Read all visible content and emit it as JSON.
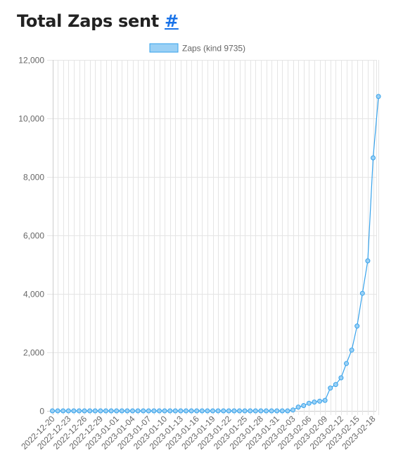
{
  "page": {
    "title": "Total Zaps sent",
    "anchor": "#"
  },
  "colors": {
    "line": "#36a2eb",
    "fill": "#9ad0f5",
    "grid": "#e5e5e5",
    "axis": "#cccccc",
    "text": "#666666"
  },
  "chart_data": {
    "type": "line",
    "ylim": [
      0,
      12000
    ],
    "y_ticks": [
      "0",
      "2,000",
      "4,000",
      "6,000",
      "8,000",
      "10,000",
      "12,000"
    ],
    "y_tick_values": [
      0,
      2000,
      4000,
      6000,
      8000,
      10000,
      12000
    ],
    "x_tick_labels": [
      "2022-12-20",
      "2022-12-23",
      "2022-12-26",
      "2022-12-29",
      "2023-01-01",
      "2023-01-04",
      "2023-01-07",
      "2023-01-10",
      "2023-01-13",
      "2023-01-16",
      "2023-01-19",
      "2023-01-22",
      "2023-01-25",
      "2023-01-28",
      "2023-01-31",
      "2023-02-03",
      "2023-02-06",
      "2023-02-09",
      "2023-02-12",
      "2023-02-15",
      "2023-02-18"
    ],
    "series": [
      {
        "name": "Zaps (kind 9735)",
        "start_date": "2022-12-20",
        "values": [
          0,
          0,
          0,
          0,
          0,
          0,
          0,
          0,
          0,
          0,
          0,
          0,
          0,
          0,
          0,
          0,
          0,
          0,
          0,
          0,
          0,
          0,
          0,
          0,
          0,
          0,
          0,
          0,
          0,
          0,
          0,
          0,
          0,
          0,
          0,
          0,
          0,
          0,
          0,
          0,
          0,
          0,
          0,
          0,
          0,
          30,
          130,
          180,
          260,
          300,
          330,
          360,
          780,
          900,
          1130,
          1620,
          2080,
          2900,
          4020,
          5130,
          8650,
          10750
        ]
      }
    ],
    "grid": true,
    "legend_position": "top"
  }
}
